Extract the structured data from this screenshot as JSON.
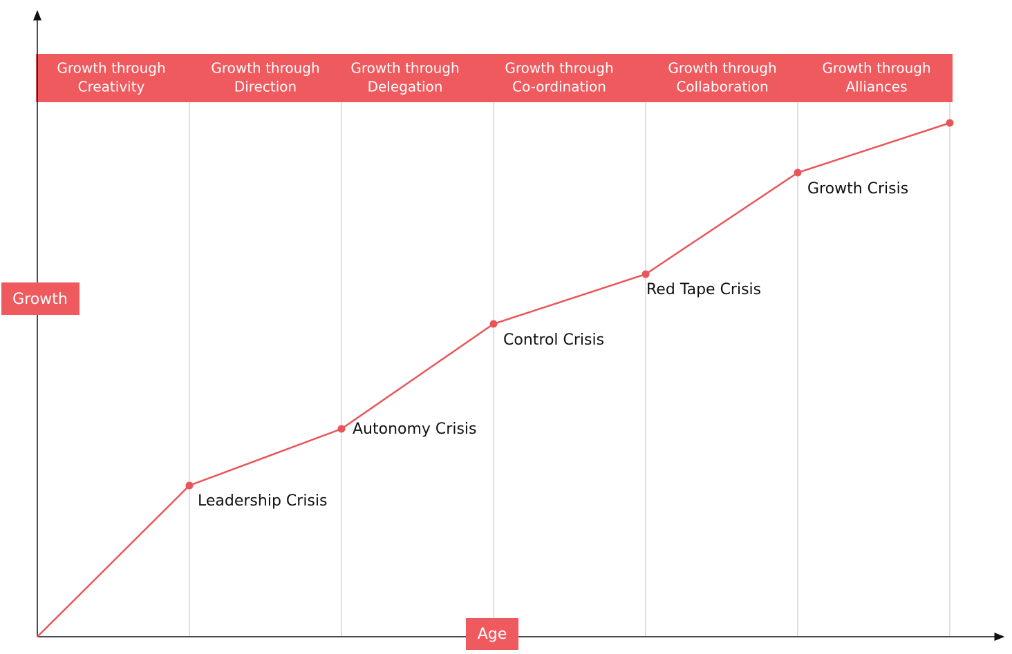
{
  "phases": [
    [
      "Growth through",
      "Creativity"
    ],
    [
      "Growth through",
      "Direction"
    ],
    [
      "Growth through",
      "Delegation"
    ],
    [
      "Growth through",
      "Co-ordination"
    ],
    [
      "Growth through",
      "Collaboration"
    ],
    [
      "Growth through",
      "Alliances"
    ]
  ],
  "crises": [
    "Leadership Crisis",
    "Autonomy Crisis",
    "Control Crisis",
    "Red Tape Crisis",
    "Growth Crisis"
  ],
  "y_axis_label": "Growth",
  "x_axis_label": "Age"
}
